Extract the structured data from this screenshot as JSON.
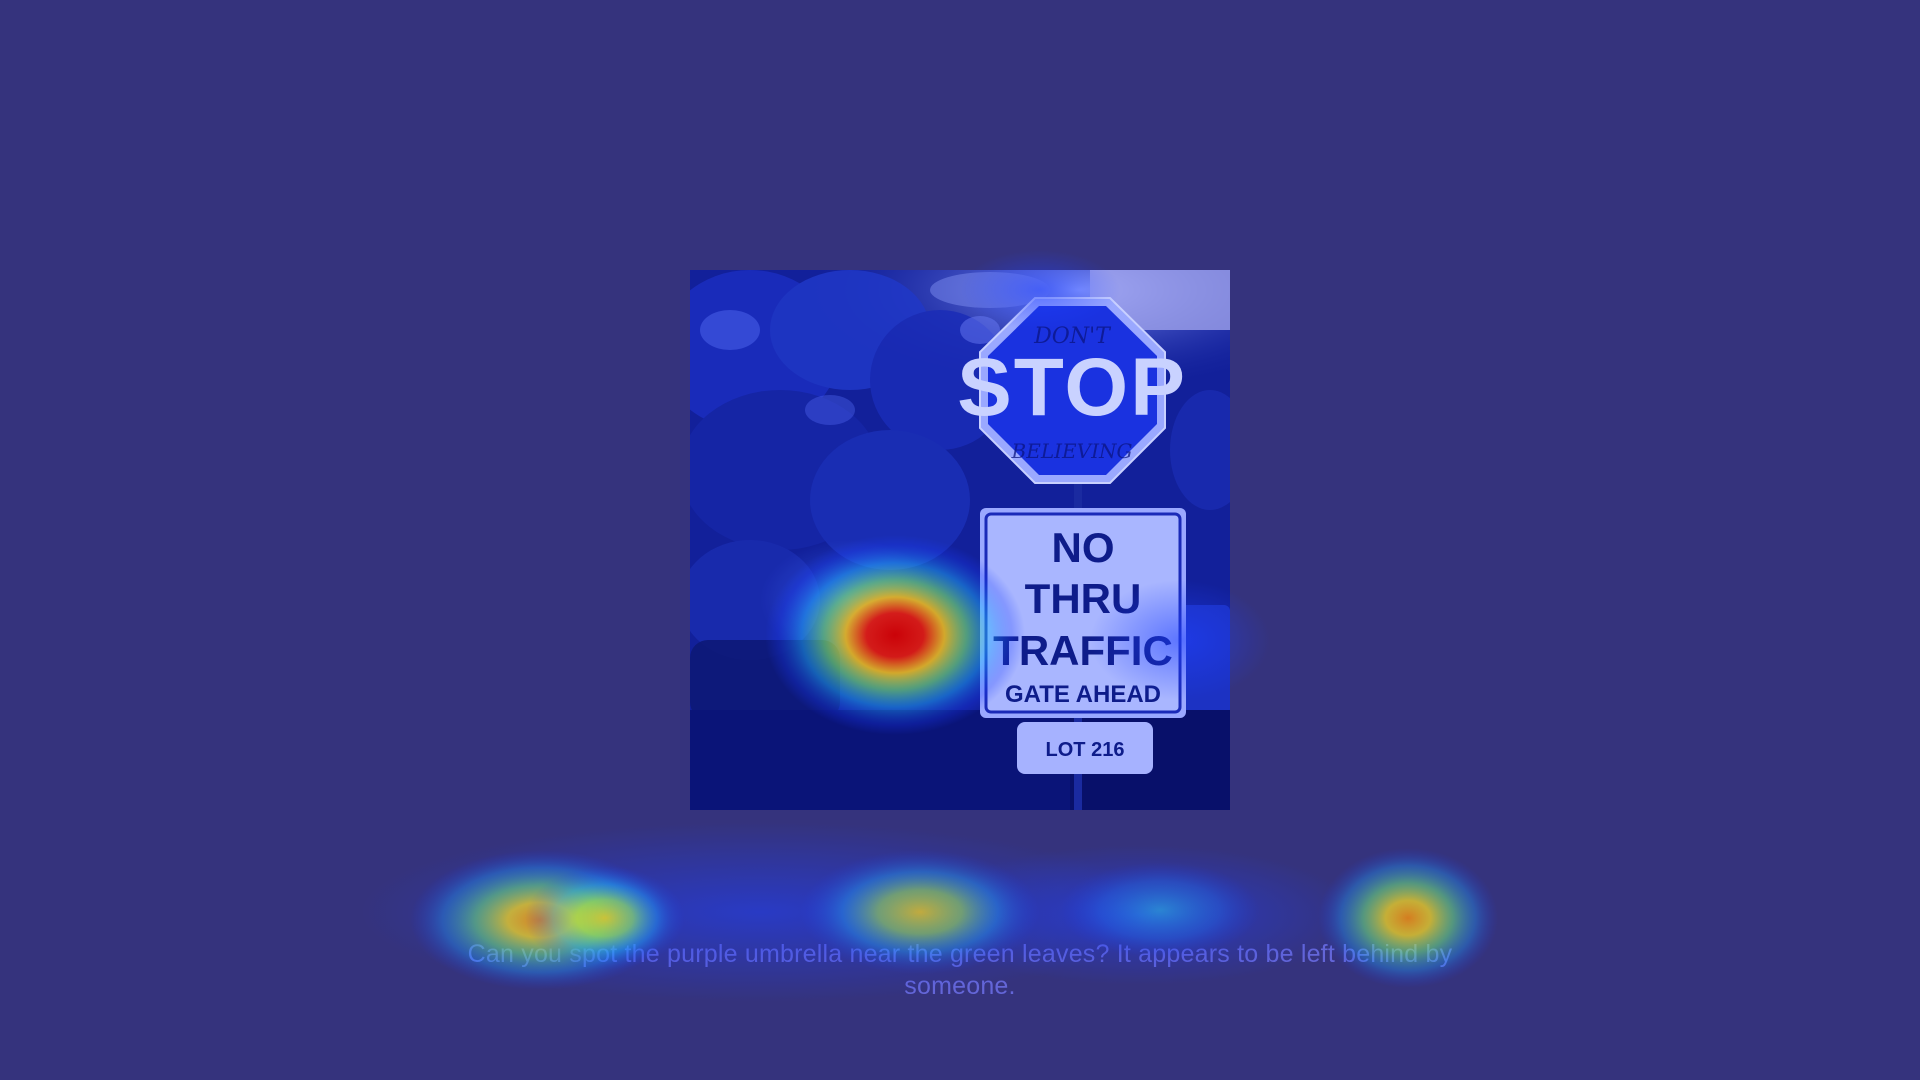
{
  "prompt": {
    "text": "Can you spot the purple umbrella near the green leaves? It appears to be left behind by someone."
  },
  "photo": {
    "sign_octagon_handwriting_top": "DON'T",
    "sign_octagon_main": "STOP",
    "sign_octagon_handwriting_bottom": "BELIEVING",
    "sign_rect_line1": "NO",
    "sign_rect_line2": "THRU",
    "sign_rect_line3": "TRAFFIC",
    "sign_rect_line4": "GATE AHEAD",
    "sign_lot": "LOT 216"
  },
  "colors": {
    "background": "#35337d",
    "prompt_text": "#6466d8",
    "heat_low": "#1a3cff",
    "heat_mid": "#f5e020",
    "heat_high": "#d40000"
  }
}
